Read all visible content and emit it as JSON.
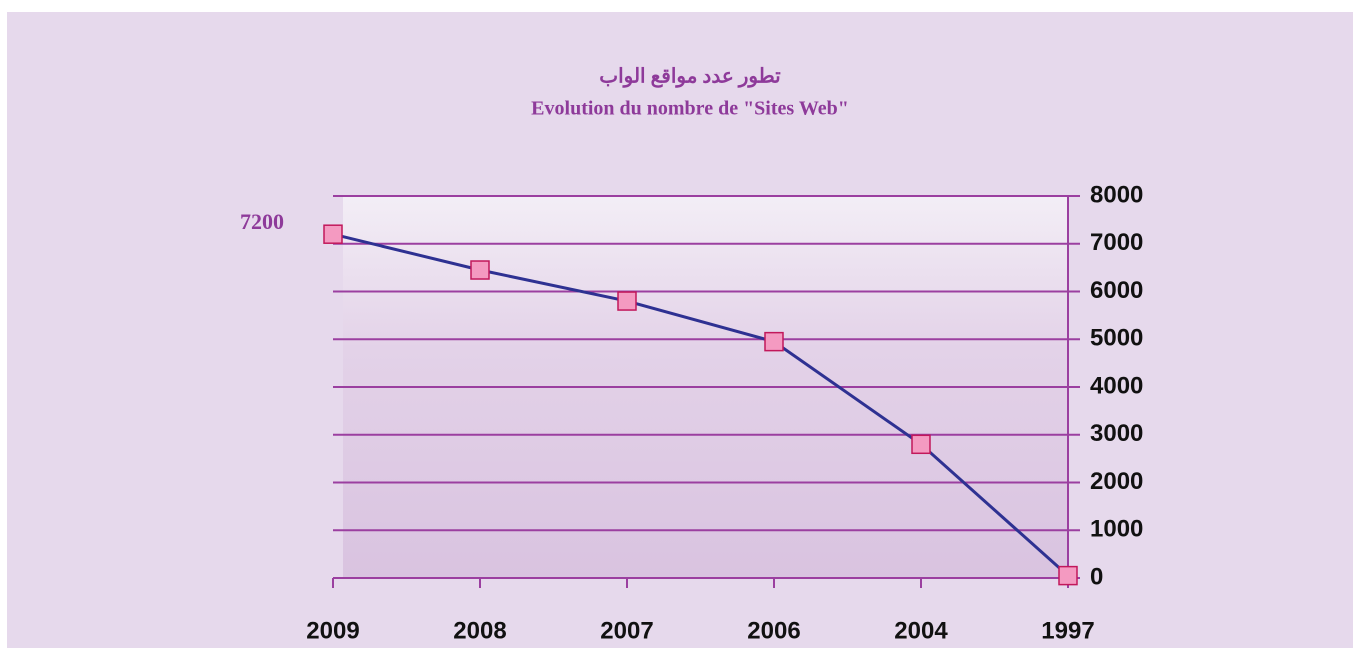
{
  "chart_data": {
    "type": "line",
    "title": "تطور عدد مواقع الواب",
    "subtitle": "Evolution du nombre de \"Sites Web\"",
    "categories": [
      "2009",
      "2008",
      "2007",
      "2006",
      "2004",
      "1997"
    ],
    "values": [
      7200,
      6450,
      5800,
      4950,
      2800,
      50
    ],
    "color": "#2e3192",
    "marker_color": "#f49ac1",
    "ylim": [
      0,
      8000
    ],
    "yticks": [
      0,
      1000,
      2000,
      3000,
      4000,
      5000,
      6000,
      7000,
      8000
    ],
    "grid": true,
    "y_axis_side": "right"
  }
}
